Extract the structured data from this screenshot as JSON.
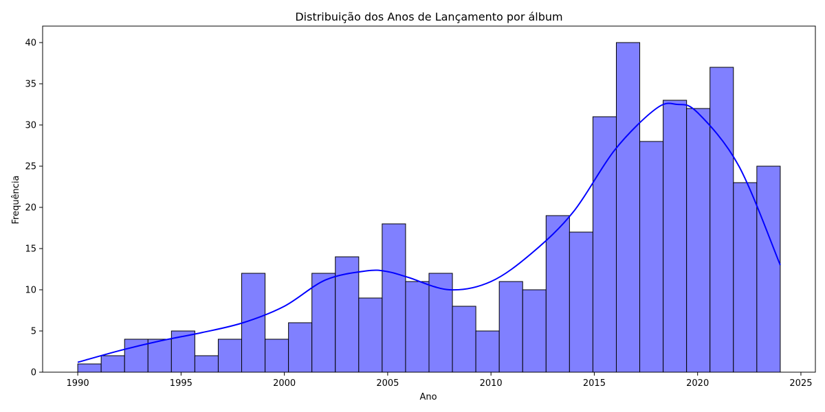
{
  "chart_data": {
    "type": "bar",
    "title": "Distribuição dos Anos de Lançamento por álbum",
    "xlabel": "Ano",
    "ylabel": "Frequência",
    "bins": {
      "start": 1990,
      "end": 2024,
      "count": 30,
      "values": [
        1,
        2,
        4,
        4,
        5,
        2,
        4,
        12,
        4,
        6,
        12,
        14,
        9,
        18,
        11,
        12,
        8,
        5,
        11,
        10,
        19,
        17,
        31,
        40,
        28,
        33,
        32,
        37,
        23,
        25
      ]
    },
    "kde": {
      "x": [
        1990,
        1992,
        1994,
        1996,
        1998,
        2000,
        2002,
        2004,
        2005,
        2006,
        2008,
        2010,
        2012,
        2014,
        2016,
        2018,
        2019,
        2020,
        2022,
        2024
      ],
      "y": [
        1.2,
        2.6,
        3.8,
        4.8,
        6.0,
        8.0,
        11.2,
        12.3,
        12.2,
        11.5,
        10.0,
        11.0,
        14.5,
        19.5,
        27.0,
        32.0,
        32.5,
        31.5,
        25.0,
        13.0
      ]
    },
    "xlim": [
      1988.3,
      2025.7
    ],
    "ylim": [
      0,
      42
    ],
    "xticks": [
      1990,
      1995,
      2000,
      2005,
      2010,
      2015,
      2020,
      2025
    ],
    "yticks": [
      0,
      5,
      10,
      15,
      20,
      25,
      30,
      35,
      40
    ],
    "colors": {
      "bar_fill": "#8080ff",
      "bar_edge": "#000000",
      "kde_line": "#0000ff"
    },
    "grid": false,
    "legend": "none"
  }
}
